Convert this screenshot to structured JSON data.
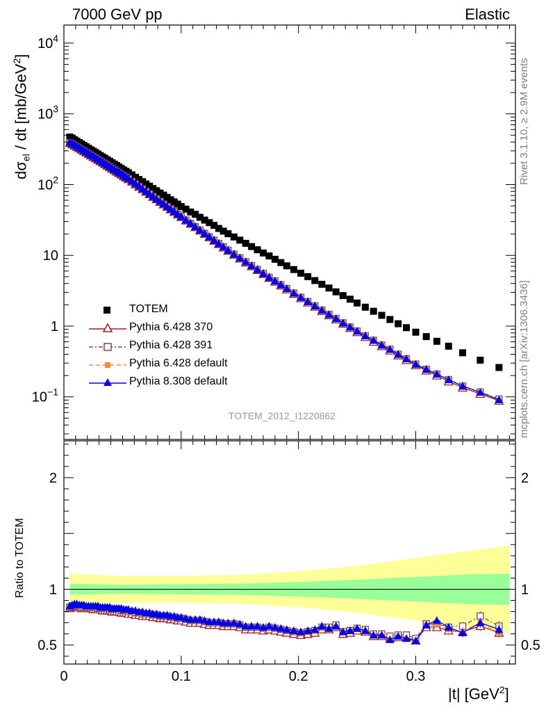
{
  "header": {
    "left": "7000 GeV pp",
    "right": "Elastic"
  },
  "side_labels": {
    "rivet": "Rivet 3.1.10, ≥ 2.9M events",
    "mcplots": "mcplots.cern.ch [arXiv:1306.3436]"
  },
  "analysis_label": "TOTEM_2012_I1220862",
  "colors": {
    "totem": "#000000",
    "py6_370": "#a01c24",
    "py6_391": "#7a4a52",
    "py6_default": "#f58a3a",
    "py8_default": "#0000e6",
    "band_inner": "#99ff99",
    "band_outer": "#ffff99"
  },
  "chart_data": [
    {
      "type": "scatter",
      "panel": "main",
      "ylabel": "dσel / dt [mb/GeV2]",
      "ylabel_parts": {
        "d": "d",
        "sigma": "σ",
        "sub": "el",
        "mid": " / dt [mb/GeV",
        "sup": "2",
        "end": "]"
      },
      "yscale": "log",
      "ylim": [
        0.025,
        18000
      ],
      "xlim": [
        0,
        0.385
      ],
      "y_tick_labels": [
        "10−1",
        "1",
        "10",
        "102",
        "103",
        "104"
      ],
      "y_tick_parts": [
        {
          "base": "10",
          "exp": "−1",
          "value": 0.1
        },
        {
          "base": "1",
          "exp": "",
          "value": 1
        },
        {
          "base": "10",
          "exp": "",
          "value": 10
        },
        {
          "base": "10",
          "exp": "2",
          "value": 100
        },
        {
          "base": "10",
          "exp": "3",
          "value": 1000
        },
        {
          "base": "10",
          "exp": "4",
          "value": 10000
        }
      ],
      "legend_position": "bottom-left",
      "legend": [
        "TOTEM",
        "Pythia 6.428 370",
        "Pythia 6.428 391",
        "Pythia 6.428 default",
        "Pythia 8.308 default"
      ],
      "x": [
        0.005,
        0.007,
        0.009,
        0.011,
        0.013,
        0.015,
        0.017,
        0.019,
        0.021,
        0.023,
        0.025,
        0.027,
        0.029,
        0.031,
        0.033,
        0.035,
        0.037,
        0.039,
        0.041,
        0.043,
        0.045,
        0.047,
        0.049,
        0.051,
        0.053,
        0.055,
        0.058,
        0.061,
        0.064,
        0.067,
        0.07,
        0.073,
        0.076,
        0.079,
        0.082,
        0.085,
        0.088,
        0.091,
        0.094,
        0.097,
        0.1,
        0.104,
        0.108,
        0.112,
        0.116,
        0.12,
        0.124,
        0.128,
        0.132,
        0.136,
        0.14,
        0.145,
        0.15,
        0.155,
        0.16,
        0.165,
        0.17,
        0.175,
        0.18,
        0.185,
        0.19,
        0.196,
        0.202,
        0.208,
        0.214,
        0.22,
        0.226,
        0.232,
        0.238,
        0.244,
        0.25,
        0.257,
        0.264,
        0.271,
        0.278,
        0.285,
        0.292,
        0.3,
        0.309,
        0.318,
        0.328,
        0.34,
        0.355,
        0.371
      ],
      "series": [
        {
          "name": "TOTEM",
          "values": [
            470,
            455,
            432,
            412,
            393,
            375,
            358,
            342,
            326,
            311,
            297,
            284,
            271,
            258,
            246,
            235,
            224,
            214,
            204,
            195,
            186,
            177,
            169,
            161,
            154,
            147,
            137,
            127,
            118,
            110,
            102,
            95,
            88,
            82,
            76,
            71,
            66,
            61,
            57,
            53,
            49,
            45,
            41,
            38,
            34.5,
            31.5,
            29,
            26.5,
            24,
            22,
            20.2,
            18.2,
            16.4,
            14.8,
            13.3,
            12,
            10.8,
            9.8,
            8.8,
            7.9,
            7.1,
            6.3,
            5.6,
            5.0,
            4.4,
            3.9,
            3.45,
            3.05,
            2.7,
            2.4,
            2.12,
            1.85,
            1.62,
            1.42,
            1.24,
            1.08,
            0.95,
            0.82,
            0.71,
            0.61,
            0.52,
            0.42,
            0.33,
            0.26
          ]
        },
        {
          "name": "Pythia 6.428 370",
          "values": [
            388,
            372,
            356,
            340,
            325,
            310,
            296,
            283,
            270,
            258,
            246,
            235,
            224,
            214,
            204,
            194,
            185,
            176,
            168,
            160,
            152,
            145,
            138,
            131,
            125,
            119,
            110,
            101,
            93,
            86,
            79,
            73,
            67,
            62,
            57,
            52.5,
            48.5,
            44.6,
            41,
            37.8,
            34.8,
            31.1,
            27.9,
            25,
            22.4,
            20.1,
            18,
            16.1,
            14.4,
            12.9,
            11.6,
            10.2,
            9.0,
            7.9,
            7.0,
            6.2,
            5.45,
            4.8,
            4.25,
            3.75,
            3.3,
            2.85,
            2.48,
            2.15,
            1.88,
            1.63,
            1.42,
            1.24,
            1.08,
            0.94,
            0.82,
            0.7,
            0.6,
            0.52,
            0.45,
            0.385,
            0.33,
            0.28,
            0.235,
            0.2,
            0.165,
            0.135,
            0.11,
            0.088
          ]
        },
        {
          "name": "Pythia 6.428 391",
          "values": [
            392,
            376,
            360,
            344,
            329,
            314,
            300,
            286,
            273,
            261,
            249,
            238,
            227,
            216,
            206,
            197,
            188,
            179,
            170,
            162,
            154,
            147,
            140,
            133,
            127,
            121,
            111,
            102,
            94,
            87,
            80,
            74,
            68,
            63,
            58,
            53,
            49,
            45.2,
            41.6,
            38.3,
            35.3,
            31.5,
            28.2,
            25.3,
            22.7,
            20.4,
            18.3,
            16.4,
            14.7,
            13.2,
            11.8,
            10.4,
            9.2,
            8.1,
            7.15,
            6.3,
            5.55,
            4.9,
            4.35,
            3.85,
            3.4,
            2.93,
            2.55,
            2.22,
            1.93,
            1.68,
            1.46,
            1.28,
            1.11,
            0.97,
            0.85,
            0.73,
            0.63,
            0.54,
            0.47,
            0.4,
            0.345,
            0.29,
            0.245,
            0.21,
            0.175,
            0.142,
            0.117,
            0.093
          ]
        },
        {
          "name": "Pythia 6.428 default",
          "values": [
            395,
            379,
            362,
            346,
            331,
            316,
            302,
            288,
            275,
            262,
            250,
            239,
            228,
            217,
            207,
            198,
            189,
            180,
            171,
            163,
            155,
            148,
            141,
            134,
            128,
            122,
            112,
            103,
            95,
            87.5,
            80.5,
            74,
            68,
            63,
            58,
            53.5,
            49.2,
            45.4,
            41.8,
            38.5,
            35.4,
            31.7,
            28.4,
            25.4,
            22.8,
            20.4,
            18.3,
            16.4,
            14.7,
            13.2,
            11.8,
            10.4,
            9.2,
            8.1,
            7.15,
            6.3,
            5.55,
            4.9,
            4.35,
            3.85,
            3.4,
            2.93,
            2.55,
            2.22,
            1.93,
            1.68,
            1.46,
            1.28,
            1.11,
            0.97,
            0.85,
            0.73,
            0.63,
            0.54,
            0.47,
            0.4,
            0.345,
            0.29,
            0.245,
            0.21,
            0.175,
            0.142,
            0.115,
            0.09
          ]
        },
        {
          "name": "Pythia 8.308 default",
          "values": [
            400,
            384,
            368,
            352,
            336,
            321,
            306,
            292,
            279,
            266,
            254,
            242,
            231,
            220,
            210,
            200,
            191,
            182,
            173,
            165,
            157,
            150,
            143,
            136,
            129,
            123,
            113,
            104,
            96,
            88,
            81,
            74.5,
            68.5,
            63,
            58,
            53.5,
            49.2,
            45.4,
            41.8,
            38.5,
            35.4,
            31.7,
            28.4,
            25.4,
            22.8,
            20.4,
            18.3,
            16.4,
            14.7,
            13.2,
            11.8,
            10.4,
            9.2,
            8.1,
            7.15,
            6.3,
            5.55,
            4.9,
            4.35,
            3.85,
            3.4,
            2.93,
            2.55,
            2.22,
            1.93,
            1.68,
            1.46,
            1.28,
            1.11,
            0.97,
            0.85,
            0.73,
            0.63,
            0.54,
            0.47,
            0.4,
            0.345,
            0.29,
            0.245,
            0.21,
            0.175,
            0.142,
            0.116,
            0.091
          ]
        }
      ]
    },
    {
      "type": "line",
      "panel": "ratio",
      "ylabel": "Ratio to TOTEM",
      "xlabel": "|t| [GeV2]",
      "xlabel_parts": {
        "main": "|t| [GeV",
        "sup": "2",
        "end": "]"
      },
      "xlim": [
        0,
        0.385
      ],
      "ylim": [
        0.33,
        2.33
      ],
      "x_tick_labels": [
        "0",
        "0.1",
        "0.2",
        "0.3"
      ],
      "y_tick_labels": [
        "0.5",
        "1",
        "2"
      ],
      "reference_line": 1,
      "band_x": [
        0.005,
        0.05,
        0.1,
        0.15,
        0.2,
        0.25,
        0.3,
        0.35,
        0.38
      ],
      "band_inner_halfwidth": [
        0.05,
        0.04,
        0.045,
        0.05,
        0.065,
        0.085,
        0.11,
        0.135,
        0.14
      ],
      "band_outer_halfwidth": [
        0.14,
        0.12,
        0.12,
        0.13,
        0.16,
        0.21,
        0.28,
        0.35,
        0.39
      ],
      "x": [
        0.005,
        0.007,
        0.009,
        0.011,
        0.013,
        0.015,
        0.017,
        0.019,
        0.021,
        0.023,
        0.025,
        0.027,
        0.029,
        0.031,
        0.033,
        0.035,
        0.037,
        0.039,
        0.041,
        0.043,
        0.045,
        0.047,
        0.049,
        0.051,
        0.053,
        0.055,
        0.058,
        0.061,
        0.064,
        0.067,
        0.07,
        0.073,
        0.076,
        0.079,
        0.082,
        0.085,
        0.088,
        0.091,
        0.094,
        0.097,
        0.1,
        0.104,
        0.108,
        0.112,
        0.116,
        0.12,
        0.124,
        0.128,
        0.132,
        0.136,
        0.14,
        0.145,
        0.15,
        0.155,
        0.16,
        0.165,
        0.17,
        0.175,
        0.18,
        0.185,
        0.19,
        0.196,
        0.202,
        0.208,
        0.214,
        0.22,
        0.226,
        0.232,
        0.238,
        0.244,
        0.25,
        0.257,
        0.264,
        0.271,
        0.278,
        0.285,
        0.292,
        0.3,
        0.309,
        0.318,
        0.328,
        0.34,
        0.355,
        0.371
      ],
      "series": [
        {
          "name": "Pythia 6.428 370",
          "values": [
            0.83,
            0.84,
            0.84,
            0.84,
            0.84,
            0.83,
            0.83,
            0.83,
            0.83,
            0.83,
            0.82,
            0.82,
            0.82,
            0.82,
            0.81,
            0.81,
            0.81,
            0.81,
            0.8,
            0.8,
            0.8,
            0.8,
            0.79,
            0.79,
            0.79,
            0.78,
            0.78,
            0.77,
            0.77,
            0.76,
            0.76,
            0.76,
            0.75,
            0.75,
            0.74,
            0.74,
            0.74,
            0.73,
            0.73,
            0.72,
            0.72,
            0.71,
            0.7,
            0.7,
            0.7,
            0.69,
            0.68,
            0.68,
            0.68,
            0.67,
            0.67,
            0.67,
            0.66,
            0.64,
            0.64,
            0.64,
            0.63,
            0.64,
            0.63,
            0.62,
            0.61,
            0.6,
            0.59,
            0.6,
            0.61,
            0.64,
            0.64,
            0.66,
            0.6,
            0.61,
            0.63,
            0.62,
            0.58,
            0.58,
            0.56,
            0.57,
            0.57,
            0.54,
            0.66,
            0.66,
            0.63,
            0.62,
            0.67,
            0.61
          ]
        },
        {
          "name": "Pythia 6.428 391",
          "values": [
            0.84,
            0.85,
            0.85,
            0.85,
            0.85,
            0.84,
            0.84,
            0.84,
            0.84,
            0.84,
            0.84,
            0.84,
            0.83,
            0.83,
            0.83,
            0.83,
            0.83,
            0.82,
            0.82,
            0.82,
            0.82,
            0.82,
            0.81,
            0.81,
            0.81,
            0.8,
            0.8,
            0.79,
            0.79,
            0.78,
            0.78,
            0.78,
            0.77,
            0.77,
            0.76,
            0.76,
            0.76,
            0.75,
            0.75,
            0.74,
            0.74,
            0.73,
            0.72,
            0.72,
            0.72,
            0.71,
            0.7,
            0.7,
            0.7,
            0.69,
            0.69,
            0.69,
            0.68,
            0.66,
            0.66,
            0.66,
            0.65,
            0.66,
            0.65,
            0.64,
            0.63,
            0.62,
            0.61,
            0.62,
            0.63,
            0.66,
            0.66,
            0.68,
            0.62,
            0.63,
            0.65,
            0.64,
            0.6,
            0.6,
            0.58,
            0.59,
            0.59,
            0.56,
            0.69,
            0.69,
            0.66,
            0.67,
            0.76,
            0.67
          ]
        },
        {
          "name": "Pythia 6.428 default",
          "values": [
            0.84,
            0.85,
            0.85,
            0.85,
            0.85,
            0.84,
            0.84,
            0.84,
            0.84,
            0.84,
            0.84,
            0.84,
            0.83,
            0.83,
            0.83,
            0.83,
            0.83,
            0.82,
            0.82,
            0.82,
            0.82,
            0.82,
            0.81,
            0.81,
            0.81,
            0.8,
            0.8,
            0.79,
            0.79,
            0.78,
            0.78,
            0.78,
            0.77,
            0.77,
            0.76,
            0.76,
            0.76,
            0.75,
            0.75,
            0.74,
            0.74,
            0.73,
            0.72,
            0.72,
            0.72,
            0.71,
            0.7,
            0.7,
            0.7,
            0.69,
            0.69,
            0.69,
            0.68,
            0.66,
            0.66,
            0.66,
            0.65,
            0.66,
            0.65,
            0.64,
            0.63,
            0.62,
            0.6,
            0.61,
            0.62,
            0.65,
            0.63,
            0.66,
            0.61,
            0.62,
            0.64,
            0.62,
            0.58,
            0.58,
            0.54,
            0.57,
            0.55,
            0.53,
            0.68,
            0.68,
            0.64,
            0.62,
            0.7,
            0.61
          ]
        },
        {
          "name": "Pythia 8.308 default",
          "values": [
            0.85,
            0.86,
            0.87,
            0.87,
            0.86,
            0.86,
            0.86,
            0.85,
            0.85,
            0.85,
            0.85,
            0.85,
            0.85,
            0.84,
            0.84,
            0.84,
            0.84,
            0.84,
            0.83,
            0.83,
            0.83,
            0.83,
            0.83,
            0.82,
            0.82,
            0.82,
            0.81,
            0.81,
            0.8,
            0.8,
            0.79,
            0.79,
            0.78,
            0.78,
            0.77,
            0.77,
            0.77,
            0.76,
            0.76,
            0.75,
            0.75,
            0.74,
            0.73,
            0.73,
            0.73,
            0.72,
            0.71,
            0.71,
            0.71,
            0.7,
            0.7,
            0.7,
            0.69,
            0.67,
            0.67,
            0.67,
            0.66,
            0.67,
            0.66,
            0.65,
            0.64,
            0.63,
            0.62,
            0.63,
            0.64,
            0.67,
            0.65,
            0.67,
            0.62,
            0.63,
            0.65,
            0.63,
            0.59,
            0.59,
            0.55,
            0.58,
            0.56,
            0.54,
            0.68,
            0.72,
            0.66,
            0.61,
            0.7,
            0.64
          ]
        }
      ]
    }
  ]
}
